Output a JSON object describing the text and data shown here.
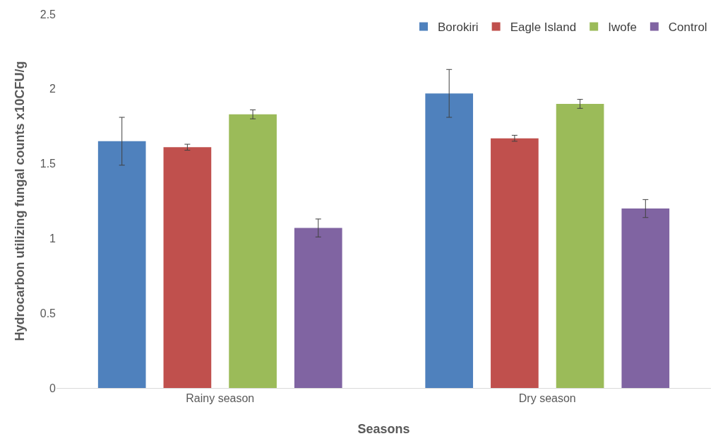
{
  "chart_data": {
    "type": "bar",
    "categories": [
      "Rainy season",
      "Dry season"
    ],
    "xlabel": "Seasons",
    "ylabel": "Hydrocarbon utilizing fungal counts x10CFU/g",
    "series": [
      {
        "name": "Borokiri",
        "color": "#4f81bd",
        "values": [
          1.65,
          1.97
        ],
        "errors": [
          0.16,
          0.16
        ]
      },
      {
        "name": "Eagle Island",
        "color": "#c0504d",
        "values": [
          1.61,
          1.67
        ],
        "errors": [
          0.02,
          0.02
        ]
      },
      {
        "name": "Iwofe",
        "color": "#9bbb59",
        "values": [
          1.83,
          1.9
        ],
        "errors": [
          0.03,
          0.03
        ]
      },
      {
        "name": "Control",
        "color": "#8064a2",
        "values": [
          1.07,
          1.2
        ],
        "errors": [
          0.06,
          0.06
        ]
      }
    ],
    "ylim": [
      0,
      2.5
    ],
    "yticks": [
      0,
      0.5,
      1,
      1.5,
      2,
      2.5
    ],
    "grid": false,
    "legend": "top right"
  }
}
